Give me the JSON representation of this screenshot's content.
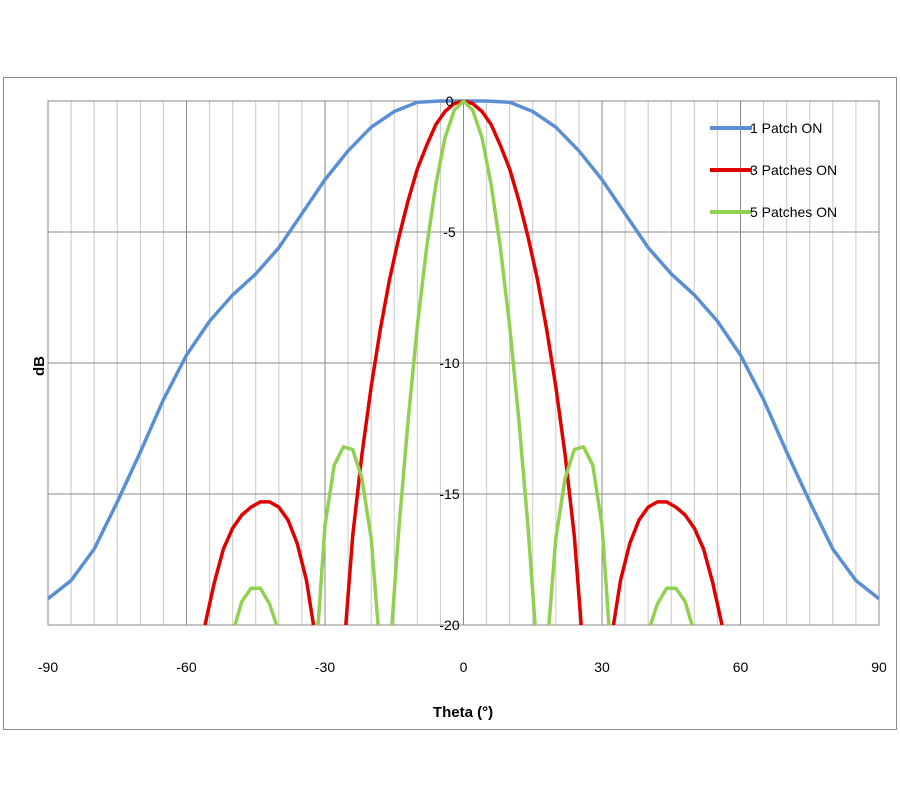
{
  "chart_data": {
    "type": "line",
    "xlabel": "Theta (°)",
    "ylabel": "dB",
    "xlim": [
      -90,
      90
    ],
    "ylim": [
      -20,
      0
    ],
    "xticks": [
      -90,
      -60,
      -30,
      0,
      30,
      60,
      90
    ],
    "yticks": [
      0,
      -5,
      -10,
      -15,
      -20
    ],
    "x_minor_step": 5,
    "grid": true,
    "legend_position": "top-right",
    "series": [
      {
        "name": "1 Patch ON",
        "color": "#5b8fd3",
        "x": [
          -90,
          -85,
          -80,
          -75,
          -70,
          -65,
          -60,
          -55,
          -50,
          -45,
          -40,
          -35,
          -30,
          -25,
          -20,
          -15,
          -10,
          -5,
          0,
          5,
          10,
          15,
          20,
          25,
          30,
          35,
          40,
          45,
          50,
          55,
          60,
          65,
          70,
          75,
          80,
          85,
          90
        ],
        "y": [
          -19,
          -18.3,
          -17.1,
          -15.3,
          -13.4,
          -11.4,
          -9.7,
          -8.4,
          -7.4,
          -6.6,
          -5.6,
          -4.3,
          -3.0,
          -1.9,
          -1.0,
          -0.4,
          -0.05,
          0,
          0,
          0,
          -0.05,
          -0.4,
          -1.0,
          -1.9,
          -3.0,
          -4.3,
          -5.6,
          -6.6,
          -7.4,
          -8.4,
          -9.7,
          -11.4,
          -13.4,
          -15.3,
          -17.1,
          -18.3,
          -19
        ]
      },
      {
        "name": "3 Patches ON",
        "color": "#e00000",
        "segments": [
          {
            "x": [
              -56,
              -54,
              -52,
              -50,
              -48,
              -46,
              -44,
              -42,
              -40,
              -38,
              -36,
              -34,
              -32.5
            ],
            "y": [
              -20,
              -18.4,
              -17.1,
              -16.3,
              -15.8,
              -15.5,
              -15.3,
              -15.3,
              -15.5,
              -16.0,
              -16.9,
              -18.3,
              -20
            ]
          },
          {
            "x": [
              -25.5,
              -24,
              -22,
              -20,
              -18,
              -16,
              -14,
              -12,
              -10,
              -8,
              -6,
              -4,
              -2,
              0,
              2,
              4,
              6,
              8,
              10,
              12,
              14,
              16,
              18,
              20,
              22,
              24,
              25.5
            ],
            "y": [
              -20,
              -16.6,
              -13.5,
              -10.9,
              -8.7,
              -6.8,
              -5.2,
              -3.8,
              -2.6,
              -1.7,
              -0.9,
              -0.4,
              -0.1,
              0,
              -0.1,
              -0.4,
              -0.9,
              -1.7,
              -2.6,
              -3.8,
              -5.2,
              -6.8,
              -8.7,
              -10.9,
              -13.5,
              -16.6,
              -20
            ]
          },
          {
            "x": [
              32.5,
              34,
              36,
              38,
              40,
              42,
              44,
              46,
              48,
              50,
              52,
              54,
              56
            ],
            "y": [
              -20,
              -18.3,
              -16.9,
              -16.0,
              -15.5,
              -15.3,
              -15.3,
              -15.5,
              -15.8,
              -16.3,
              -17.1,
              -18.4,
              -20
            ]
          }
        ]
      },
      {
        "name": "5 Patches ON",
        "color": "#92d050",
        "segments": [
          {
            "x": [
              -49.5,
              -48,
              -46,
              -44,
              -42,
              -40.5
            ],
            "y": [
              -20,
              -19.1,
              -18.6,
              -18.6,
              -19.2,
              -20
            ]
          },
          {
            "x": [
              -31.5,
              -30,
              -28,
              -26,
              -24,
              -22,
              -20,
              -18.5
            ],
            "y": [
              -20,
              -16.2,
              -13.9,
              -13.2,
              -13.3,
              -14.4,
              -16.7,
              -20
            ]
          },
          {
            "x": [
              -15.5,
              -14,
              -12,
              -10,
              -8,
              -6,
              -4,
              -2,
              0,
              2,
              4,
              6,
              8,
              10,
              12,
              14,
              15.5
            ],
            "y": [
              -20,
              -16.3,
              -12.2,
              -8.6,
              -5.6,
              -3.2,
              -1.4,
              -0.35,
              0,
              -0.35,
              -1.4,
              -3.2,
              -5.6,
              -8.6,
              -12.2,
              -16.3,
              -20
            ]
          },
          {
            "x": [
              18.5,
              20,
              22,
              24,
              26,
              28,
              30,
              31.5
            ],
            "y": [
              -20,
              -16.7,
              -14.4,
              -13.3,
              -13.2,
              -13.9,
              -16.2,
              -20
            ]
          },
          {
            "x": [
              40.5,
              42,
              44,
              46,
              48,
              49.5
            ],
            "y": [
              -20,
              -19.2,
              -18.6,
              -18.6,
              -19.1,
              -20
            ]
          }
        ]
      }
    ]
  }
}
